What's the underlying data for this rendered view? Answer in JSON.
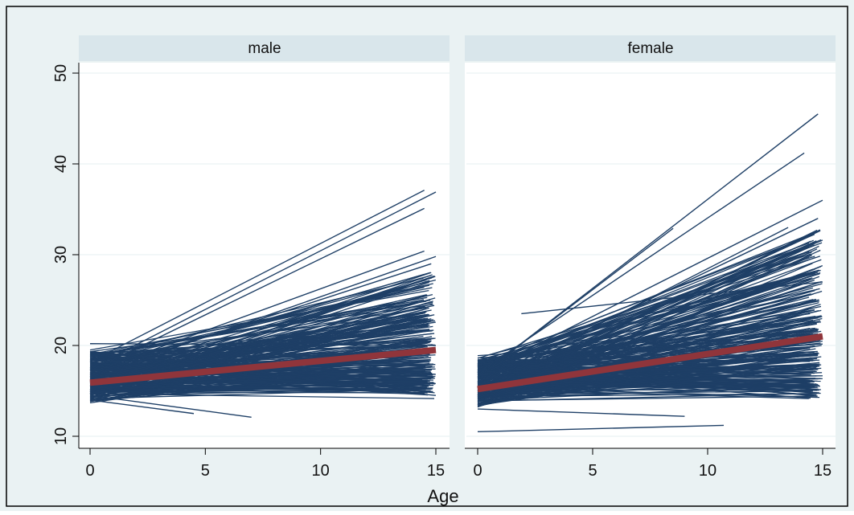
{
  "colors": {
    "background": "#eaf2f3",
    "panel_bg": "#ffffff",
    "strip_bg": "#d9e6eb",
    "line": "#1e3f66",
    "mean_line": "#90353b",
    "grid": "#eaf2f3",
    "frame": "#000000"
  },
  "chart_data": {
    "type": "line",
    "xlabel": "Age",
    "ylabel": "",
    "xlim": [
      0,
      15
    ],
    "ylim": [
      10,
      50
    ],
    "x_ticks": [
      "0",
      "5",
      "10",
      "15"
    ],
    "y_ticks": [
      "10",
      "20",
      "30",
      "40",
      "50"
    ],
    "grid": true,
    "panels": [
      {
        "name": "male",
        "mean_line": {
          "x": [
            0,
            15
          ],
          "y": [
            15.9,
            19.5
          ]
        },
        "notable_lines": [
          {
            "x": [
              0,
              14.5
            ],
            "y": [
              18.2,
              37.1
            ]
          },
          {
            "x": [
              0,
              15
            ],
            "y": [
              17.5,
              36.9
            ]
          },
          {
            "x": [
              0,
              14.5
            ],
            "y": [
              17.2,
              35.1
            ]
          },
          {
            "x": [
              0,
              14.5
            ],
            "y": [
              17.0,
              30.4
            ]
          },
          {
            "x": [
              0,
              15
            ],
            "y": [
              16.5,
              29.8
            ]
          },
          {
            "x": [
              0,
              14.8
            ],
            "y": [
              16.8,
              29.0
            ]
          },
          {
            "x": [
              0,
              4.5
            ],
            "y": [
              14.0,
              12.5
            ]
          },
          {
            "x": [
              0,
              7
            ],
            "y": [
              14.5,
              12.1
            ]
          },
          {
            "x": [
              0,
              15
            ],
            "y": [
              20.2,
              20.0
            ]
          }
        ],
        "fan": {
          "start_min": 13.0,
          "start_max": 20.2,
          "end_min": 13.7,
          "end_max": 28.2,
          "count": 230
        }
      },
      {
        "name": "female",
        "mean_line": {
          "x": [
            0,
            15
          ],
          "y": [
            15.2,
            21.0
          ]
        },
        "notable_lines": [
          {
            "x": [
              0,
              14.8
            ],
            "y": [
              16.5,
              45.5
            ]
          },
          {
            "x": [
              0,
              14.2
            ],
            "y": [
              17.0,
              41.2
            ]
          },
          {
            "x": [
              0,
              15
            ],
            "y": [
              16.8,
              36.0
            ]
          },
          {
            "x": [
              0,
              8.5
            ],
            "y": [
              16.5,
              32.9
            ]
          },
          {
            "x": [
              0,
              14.8
            ],
            "y": [
              16.0,
              34.0
            ]
          },
          {
            "x": [
              0,
              13.5
            ],
            "y": [
              15.5,
              33.0
            ]
          },
          {
            "x": [
              1.9,
              15
            ],
            "y": [
              23.5,
              27.0
            ]
          },
          {
            "x": [
              0,
              10.7
            ],
            "y": [
              10.5,
              11.2
            ]
          },
          {
            "x": [
              0,
              9
            ],
            "y": [
              13.0,
              12.2
            ]
          }
        ],
        "fan": {
          "start_min": 12.5,
          "start_max": 19.5,
          "end_min": 13.6,
          "end_max": 33.0,
          "count": 260
        }
      }
    ]
  }
}
